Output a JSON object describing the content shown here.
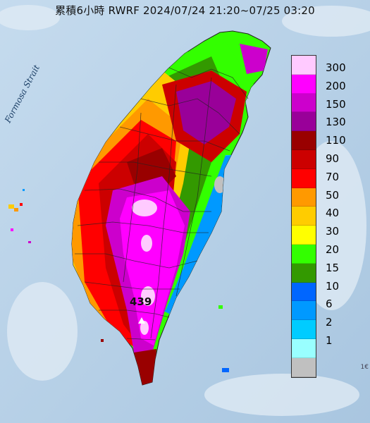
{
  "title": "累積6小時 RWRF 2024/07/24 21:20~07/25 03:20",
  "strait_label": "Formosa Strait",
  "max_marker": "439",
  "corner_text": "1€",
  "legend": [
    {
      "label": "300",
      "color": "#ffcaff"
    },
    {
      "label": "200",
      "color": "#ff00ff"
    },
    {
      "label": "150",
      "color": "#cc00cc"
    },
    {
      "label": "130",
      "color": "#990099"
    },
    {
      "label": "110",
      "color": "#990000"
    },
    {
      "label": "90",
      "color": "#cc0000"
    },
    {
      "label": "70",
      "color": "#ff0000"
    },
    {
      "label": "50",
      "color": "#ff9900"
    },
    {
      "label": "40",
      "color": "#ffcc00"
    },
    {
      "label": "30",
      "color": "#ffff00"
    },
    {
      "label": "20",
      "color": "#33ff00"
    },
    {
      "label": "15",
      "color": "#339900"
    },
    {
      "label": "10",
      "color": "#0066ff"
    },
    {
      "label": "6",
      "color": "#0099ff"
    },
    {
      "label": "2",
      "color": "#00ccff"
    },
    {
      "label": "1",
      "color": "#99ffff"
    },
    {
      "label": "",
      "color": "#c0c0c0"
    }
  ]
}
